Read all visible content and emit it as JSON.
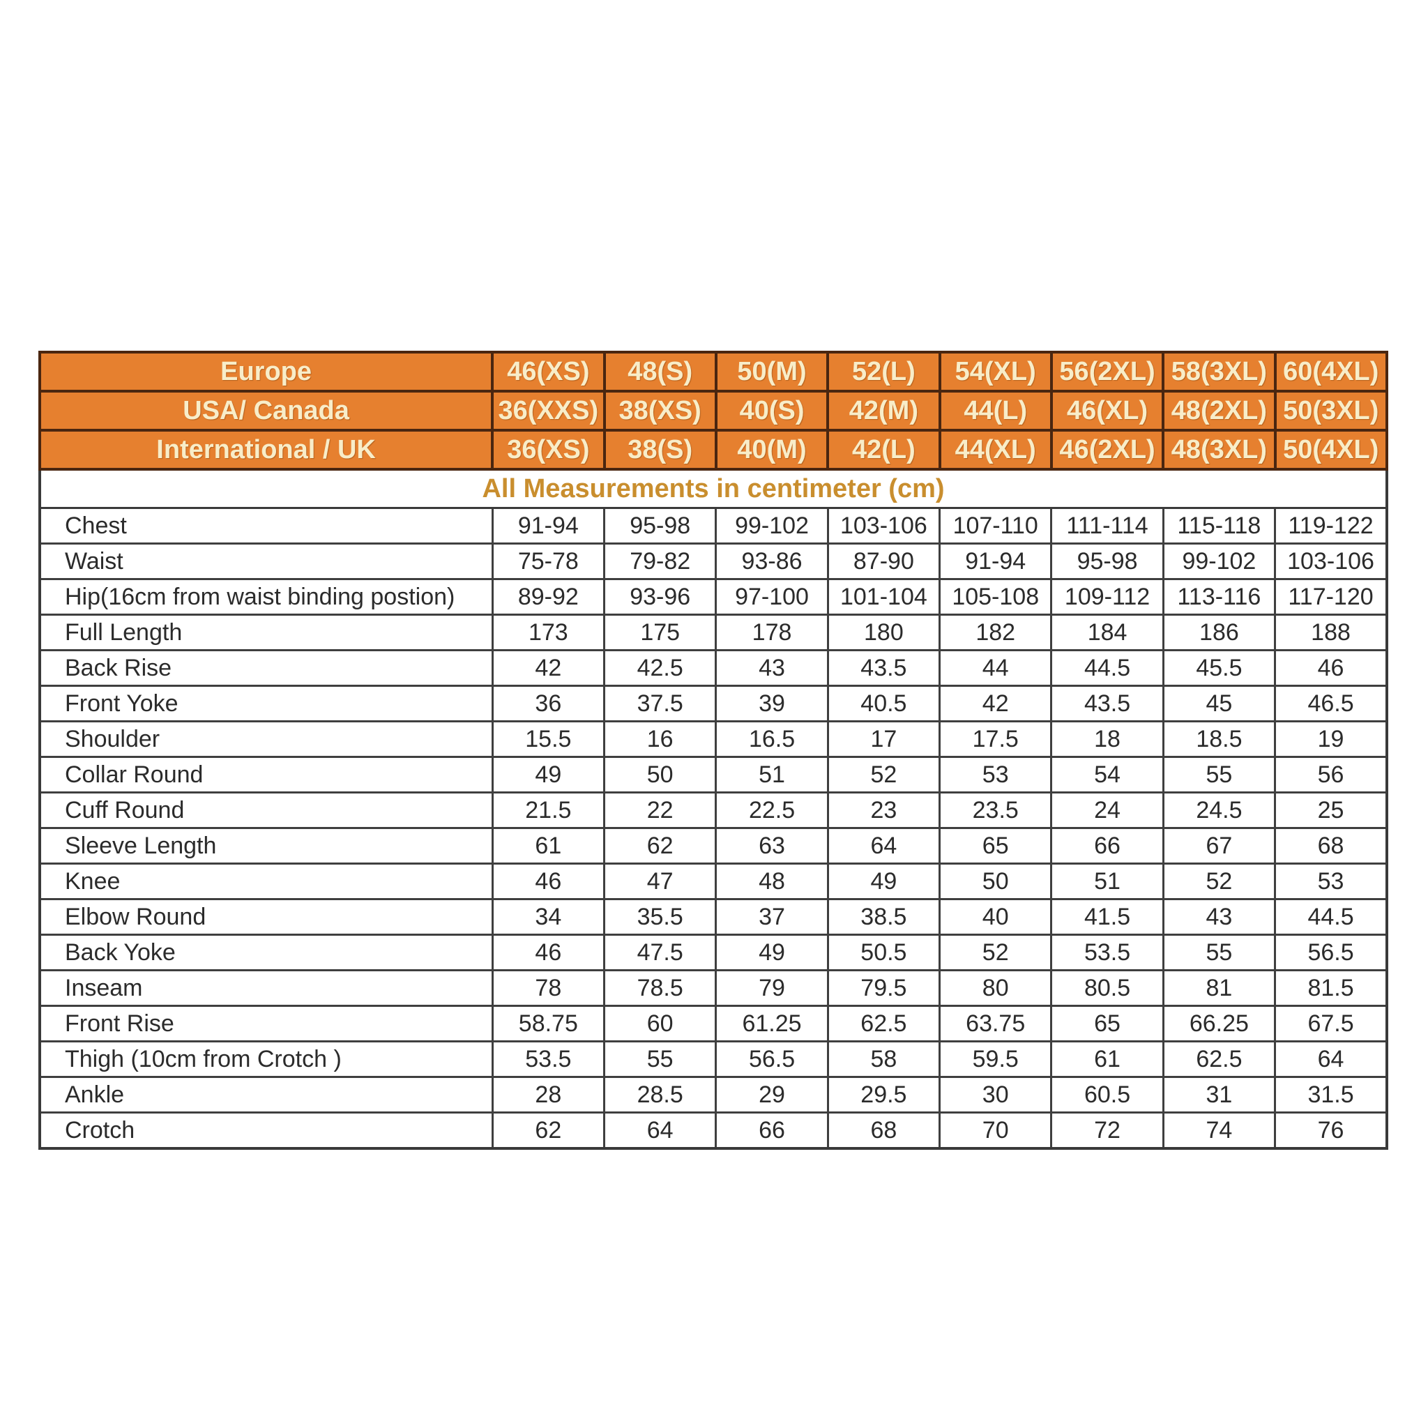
{
  "subtitle": "All Measurements in centimeter (cm)",
  "colors": {
    "header_bg": "#E6802F",
    "header_text": "#F8EDC9",
    "subtitle_text": "#C98E2E",
    "body_text": "#2B2B2B",
    "header_border": "#4A2610",
    "grid_border": "#3F3F3F"
  },
  "header_rows": [
    {
      "label": "Europe",
      "sizes": [
        "46(XS)",
        "48(S)",
        "50(M)",
        "52(L)",
        "54(XL)",
        "56(2XL)",
        "58(3XL)",
        "60(4XL)"
      ]
    },
    {
      "label": "USA/ Canada",
      "sizes": [
        "36(XXS)",
        "38(XS)",
        "40(S)",
        "42(M)",
        "44(L)",
        "46(XL)",
        "48(2XL)",
        "50(3XL)"
      ]
    },
    {
      "label": "International / UK",
      "sizes": [
        "36(XS)",
        "38(S)",
        "40(M)",
        "42(L)",
        "44(XL)",
        "46(2XL)",
        "48(3XL)",
        "50(4XL)"
      ]
    }
  ],
  "rows": [
    {
      "label": "Chest",
      "values": [
        "91-94",
        "95-98",
        "99-102",
        "103-106",
        "107-110",
        "111-114",
        "115-118",
        "119-122"
      ]
    },
    {
      "label": "Waist",
      "values": [
        "75-78",
        "79-82",
        "93-86",
        "87-90",
        "91-94",
        "95-98",
        "99-102",
        "103-106"
      ]
    },
    {
      "label": "Hip(16cm from waist binding postion)",
      "values": [
        "89-92",
        "93-96",
        "97-100",
        "101-104",
        "105-108",
        "109-112",
        "113-116",
        "117-120"
      ]
    },
    {
      "label": "Full Length",
      "values": [
        "173",
        "175",
        "178",
        "180",
        "182",
        "184",
        "186",
        "188"
      ]
    },
    {
      "label": "Back Rise",
      "values": [
        "42",
        "42.5",
        "43",
        "43.5",
        "44",
        "44.5",
        "45.5",
        "46"
      ]
    },
    {
      "label": "Front Yoke",
      "values": [
        "36",
        "37.5",
        "39",
        "40.5",
        "42",
        "43.5",
        "45",
        "46.5"
      ]
    },
    {
      "label": "Shoulder",
      "values": [
        "15.5",
        "16",
        "16.5",
        "17",
        "17.5",
        "18",
        "18.5",
        "19"
      ]
    },
    {
      "label": "Collar Round",
      "values": [
        "49",
        "50",
        "51",
        "52",
        "53",
        "54",
        "55",
        "56"
      ]
    },
    {
      "label": "Cuff Round",
      "values": [
        "21.5",
        "22",
        "22.5",
        "23",
        "23.5",
        "24",
        "24.5",
        "25"
      ]
    },
    {
      "label": "Sleeve Length",
      "values": [
        "61",
        "62",
        "63",
        "64",
        "65",
        "66",
        "67",
        "68"
      ]
    },
    {
      "label": "Knee",
      "values": [
        "46",
        "47",
        "48",
        "49",
        "50",
        "51",
        "52",
        "53"
      ]
    },
    {
      "label": "Elbow Round",
      "values": [
        "34",
        "35.5",
        "37",
        "38.5",
        "40",
        "41.5",
        "43",
        "44.5"
      ]
    },
    {
      "label": "Back Yoke",
      "values": [
        "46",
        "47.5",
        "49",
        "50.5",
        "52",
        "53.5",
        "55",
        "56.5"
      ]
    },
    {
      "label": "Inseam",
      "values": [
        "78",
        "78.5",
        "79",
        "79.5",
        "80",
        "80.5",
        "81",
        "81.5"
      ]
    },
    {
      "label": "Front Rise",
      "values": [
        "58.75",
        "60",
        "61.25",
        "62.5",
        "63.75",
        "65",
        "66.25",
        "67.5"
      ]
    },
    {
      "label": "Thigh (10cm from Crotch )",
      "values": [
        "53.5",
        "55",
        "56.5",
        "58",
        "59.5",
        "61",
        "62.5",
        "64"
      ]
    },
    {
      "label": "Ankle",
      "values": [
        "28",
        "28.5",
        "29",
        "29.5",
        "30",
        "60.5",
        "31",
        "31.5"
      ]
    },
    {
      "label": "Crotch",
      "values": [
        "62",
        "64",
        "66",
        "68",
        "70",
        "72",
        "74",
        "76"
      ]
    }
  ]
}
